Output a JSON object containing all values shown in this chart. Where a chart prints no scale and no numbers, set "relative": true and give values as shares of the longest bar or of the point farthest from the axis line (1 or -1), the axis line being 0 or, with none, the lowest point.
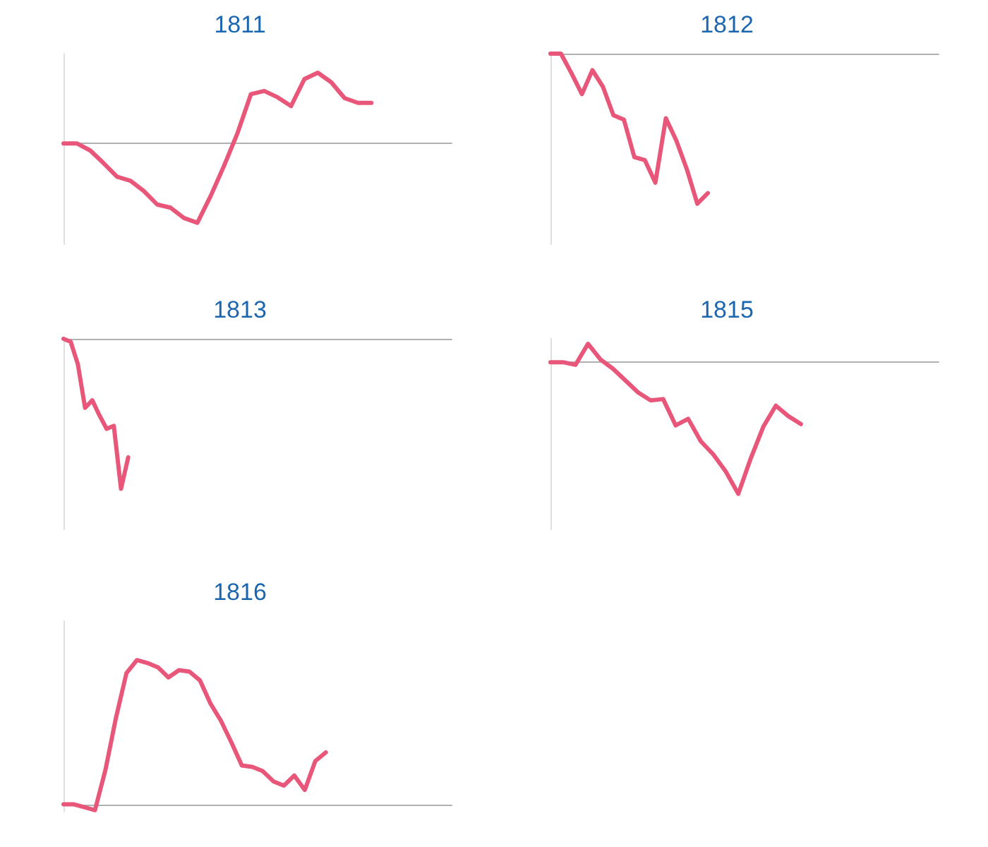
{
  "chart_data": [
    {
      "type": "line",
      "title": "1811",
      "relative": true,
      "marker": "none",
      "line_style": "solid",
      "categories": [
        null,
        null,
        null,
        null,
        null,
        null,
        null,
        null,
        null,
        null,
        null,
        null,
        null,
        null,
        null,
        null,
        null,
        null,
        null,
        null,
        null,
        null,
        null,
        null,
        null,
        null,
        null,
        null,
        null,
        null
      ],
      "series": [
        {
          "color": "#e8577a",
          "values": [
            0,
            0,
            -0.09,
            -0.25,
            -0.42,
            -0.47,
            -0.6,
            -0.77,
            -0.81,
            -0.94,
            -1,
            -0.66,
            -0.28,
            0.13,
            0.62,
            0.66,
            0.58,
            0.47,
            0.81,
            0.89,
            0.77,
            0.57,
            0.51,
            0.51,
            null,
            null,
            null,
            null,
            null,
            null
          ]
        }
      ]
    },
    {
      "type": "line",
      "title": "1812",
      "relative": true,
      "marker": "none",
      "line_style": "solid",
      "categories": [
        null,
        null,
        null,
        null,
        null,
        null,
        null,
        null,
        null,
        null,
        null,
        null,
        null,
        null,
        null,
        null,
        null,
        null,
        null,
        null,
        null,
        null,
        null,
        null,
        null,
        null,
        null,
        null,
        null,
        null,
        null,
        null,
        null,
        null,
        null,
        null,
        null,
        null
      ],
      "series": [
        {
          "color": "#e8577a",
          "values": [
            0,
            0,
            -0.13,
            -0.27,
            -0.11,
            -0.22,
            -0.41,
            -0.44,
            -0.69,
            -0.71,
            -0.86,
            -0.43,
            -0.58,
            -0.77,
            -1,
            -0.93,
            null,
            null,
            null,
            null,
            null,
            null,
            null,
            null,
            null,
            null,
            null,
            null,
            null,
            null,
            null,
            null,
            null,
            null,
            null,
            null,
            null,
            null
          ]
        }
      ]
    },
    {
      "type": "line",
      "title": "1813",
      "relative": true,
      "marker": "none",
      "line_style": "solid",
      "categories": [
        null,
        null,
        null,
        null,
        null,
        null,
        null,
        null,
        null,
        null,
        null,
        null,
        null,
        null,
        null,
        null,
        null,
        null,
        null,
        null,
        null,
        null,
        null,
        null,
        null,
        null,
        null,
        null,
        null,
        null,
        null,
        null,
        null,
        null,
        null,
        null,
        null,
        null,
        null,
        null,
        null,
        null,
        null,
        null,
        null,
        null,
        null,
        null,
        null,
        null,
        null,
        null,
        null,
        null,
        null
      ],
      "series": [
        {
          "color": "#e8577a",
          "values": [
            0,
            -0.02,
            -0.17,
            -0.46,
            -0.41,
            -0.51,
            -0.6,
            -0.58,
            -1,
            -0.79,
            null,
            null,
            null,
            null,
            null,
            null,
            null,
            null,
            null,
            null,
            null,
            null,
            null,
            null,
            null,
            null,
            null,
            null,
            null,
            null,
            null,
            null,
            null,
            null,
            null,
            null,
            null,
            null,
            null,
            null,
            null,
            null,
            null,
            null,
            null,
            null,
            null,
            null,
            null,
            null,
            null,
            null,
            null,
            null,
            null
          ]
        }
      ]
    },
    {
      "type": "line",
      "title": "1815",
      "relative": true,
      "marker": "none",
      "line_style": "solid",
      "categories": [
        null,
        null,
        null,
        null,
        null,
        null,
        null,
        null,
        null,
        null,
        null,
        null,
        null,
        null,
        null,
        null,
        null,
        null,
        null,
        null,
        null,
        null,
        null,
        null,
        null,
        null,
        null,
        null,
        null,
        null,
        null,
        null
      ],
      "series": [
        {
          "color": "#e8577a",
          "values": [
            0,
            0,
            -0.02,
            0.14,
            0.02,
            -0.05,
            -0.14,
            -0.23,
            -0.29,
            -0.28,
            -0.48,
            -0.43,
            -0.6,
            -0.7,
            -0.83,
            -1,
            -0.73,
            -0.49,
            -0.33,
            -0.41,
            -0.47,
            null,
            null,
            null,
            null,
            null,
            null,
            null,
            null,
            null,
            null,
            null
          ]
        }
      ]
    },
    {
      "type": "line",
      "title": "1816",
      "relative": true,
      "marker": "none",
      "line_style": "solid",
      "categories": [
        null,
        null,
        null,
        null,
        null,
        null,
        null,
        null,
        null,
        null,
        null,
        null,
        null,
        null,
        null,
        null,
        null,
        null,
        null,
        null,
        null,
        null,
        null,
        null,
        null,
        null,
        null,
        null,
        null,
        null,
        null,
        null,
        null,
        null,
        null,
        null,
        null,
        null
      ],
      "series": [
        {
          "color": "#e8577a",
          "values": [
            0,
            0,
            -0.02,
            -0.04,
            0.24,
            0.6,
            0.91,
            1,
            0.98,
            0.95,
            0.88,
            0.93,
            0.92,
            0.86,
            0.7,
            0.58,
            0.43,
            0.27,
            0.26,
            0.23,
            0.16,
            0.13,
            0.2,
            0.1,
            0.3,
            0.36,
            null,
            null,
            null,
            null,
            null,
            null,
            null,
            null,
            null,
            null,
            null,
            null
          ]
        }
      ]
    }
  ]
}
